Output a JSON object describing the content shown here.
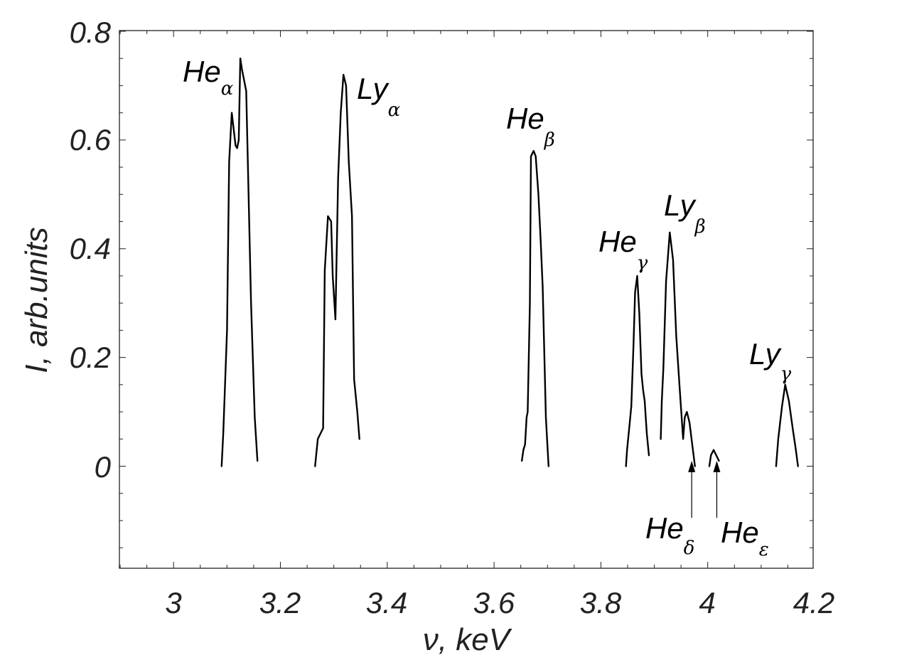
{
  "chart_data": {
    "type": "line",
    "title": "",
    "xlabel": "ν, keV",
    "ylabel": "I, arb.units",
    "xlim": [
      2.9,
      4.2
    ],
    "ylim": [
      -0.19,
      0.8
    ],
    "x_ticks": [
      3,
      3.2,
      3.4,
      3.6,
      3.8,
      4,
      4.2
    ],
    "x_tick_labels": [
      "3",
      "3.2",
      "3.4",
      "3.6",
      "3.8",
      "4",
      "4.2"
    ],
    "y_ticks": [
      0,
      0.2,
      0.4,
      0.6,
      0.8
    ],
    "y_tick_labels": [
      "0",
      "0.2",
      "0.4",
      "0.6",
      "0.8"
    ],
    "grid": false,
    "line_color": "#000000",
    "series": [
      {
        "x": [
          3.09,
          3.093,
          3.1,
          3.104,
          3.109,
          3.116,
          3.119,
          3.122,
          3.125,
          3.128,
          3.136,
          3.145,
          3.152,
          3.157
        ],
        "y": [
          0.0,
          0.06,
          0.25,
          0.56,
          0.65,
          0.59,
          0.585,
          0.6,
          0.75,
          0.73,
          0.69,
          0.3,
          0.09,
          0.01
        ]
      },
      {
        "x": [
          3.265,
          3.27,
          3.28,
          3.283,
          3.289,
          3.295,
          3.298,
          3.303,
          3.308,
          3.313,
          3.318,
          3.323,
          3.328,
          3.334,
          3.338,
          3.344,
          3.348
        ],
        "y": [
          0.0,
          0.05,
          0.07,
          0.36,
          0.46,
          0.45,
          0.35,
          0.27,
          0.53,
          0.65,
          0.72,
          0.7,
          0.56,
          0.46,
          0.16,
          0.1,
          0.05
        ]
      },
      {
        "x": [
          3.652,
          3.655,
          3.658,
          3.661,
          3.663,
          3.667,
          3.669,
          3.674,
          3.678,
          3.683,
          3.687,
          3.691,
          3.697,
          3.702
        ],
        "y": [
          0.01,
          0.03,
          0.04,
          0.09,
          0.1,
          0.3,
          0.57,
          0.58,
          0.57,
          0.5,
          0.42,
          0.33,
          0.09,
          0.0
        ]
      },
      {
        "x": [
          3.847,
          3.849,
          3.852,
          3.857,
          3.861,
          3.864,
          3.868,
          3.872,
          3.876,
          3.879,
          3.882,
          3.886,
          3.89
        ],
        "y": [
          0.0,
          0.03,
          0.06,
          0.11,
          0.22,
          0.32,
          0.35,
          0.28,
          0.17,
          0.14,
          0.12,
          0.06,
          0.02
        ]
      },
      {
        "x": [
          3.912,
          3.914,
          3.917,
          3.922,
          3.929,
          3.935,
          3.941,
          3.947,
          3.954,
          3.957,
          3.961,
          3.966,
          3.971,
          3.976
        ],
        "y": [
          0.05,
          0.12,
          0.18,
          0.34,
          0.43,
          0.38,
          0.24,
          0.15,
          0.05,
          0.09,
          0.1,
          0.08,
          0.04,
          0.0
        ]
      },
      {
        "x": [
          4.003,
          4.006,
          4.011,
          4.016,
          4.021
        ],
        "y": [
          0.0,
          0.02,
          0.03,
          0.02,
          0.01
        ]
      },
      {
        "x": [
          4.128,
          4.132,
          4.139,
          4.145,
          4.152,
          4.159,
          4.165,
          4.169
        ],
        "y": [
          0.0,
          0.05,
          0.11,
          0.15,
          0.12,
          0.07,
          0.03,
          0.0
        ]
      }
    ],
    "annotations": [
      {
        "base": "He",
        "sub": "α"
      },
      {
        "base": "Ly",
        "sub": "α"
      },
      {
        "base": "He",
        "sub": "β"
      },
      {
        "base": "He",
        "sub": "γ"
      },
      {
        "base": "Ly",
        "sub": "β"
      },
      {
        "base": "He",
        "sub": "δ"
      },
      {
        "base": "He",
        "sub": "ε"
      },
      {
        "base": "Ly",
        "sub": "γ"
      }
    ],
    "arrows": [
      {
        "x": 3.97,
        "y_from": -0.095,
        "y_to": 0.01
      },
      {
        "x": 4.017,
        "y_from": -0.095,
        "y_to": 0.01
      }
    ]
  }
}
